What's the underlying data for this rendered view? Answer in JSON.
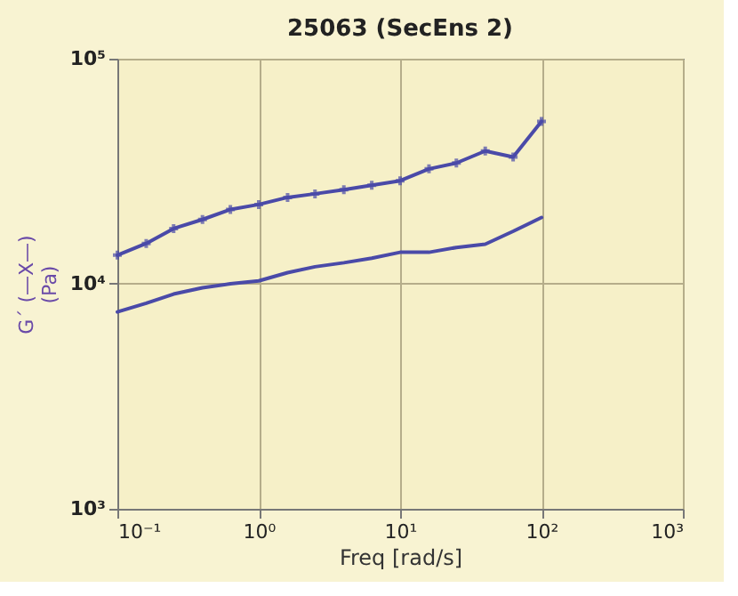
{
  "chart_data": {
    "type": "line",
    "title": "25063 (SecEns 2)",
    "xlabel": "Freq [rad/s]",
    "ylabel": "G´ (—X—)\n(Pa)",
    "log": "xy",
    "grid": true,
    "xlim": [
      0.1,
      1000
    ],
    "xticks": [
      {
        "value": 0.1,
        "label": "10⁻¹"
      },
      {
        "value": 1,
        "label": "10⁰"
      },
      {
        "value": 10,
        "label": "10¹"
      },
      {
        "value": 100,
        "label": "10²"
      },
      {
        "value": 1000,
        "label": "10³"
      }
    ],
    "ylim": [
      1000,
      100000
    ],
    "yticks": [
      {
        "value": 1000,
        "label": "10³"
      },
      {
        "value": 10000,
        "label": "10⁴"
      },
      {
        "value": 100000,
        "label": "10⁵"
      }
    ],
    "x": [
      0.1,
      0.16,
      0.25,
      0.4,
      0.63,
      1,
      1.6,
      2.5,
      4,
      6.3,
      10,
      16,
      25,
      40,
      63,
      100
    ],
    "series": [
      {
        "color": "#4a4aa8",
        "marker": "cross",
        "values": [
          13400,
          15100,
          17600,
          19300,
          21400,
          22500,
          24200,
          25100,
          26200,
          27400,
          28700,
          32400,
          34400,
          38900,
          36600,
          52700
        ]
      },
      {
        "color": "#4a4aa8",
        "marker": "none",
        "values": [
          7500,
          8200,
          9000,
          9600,
          10000,
          10300,
          11200,
          11900,
          12400,
          13000,
          13800,
          13800,
          14500,
          15000,
          17100,
          19700
        ]
      }
    ]
  }
}
